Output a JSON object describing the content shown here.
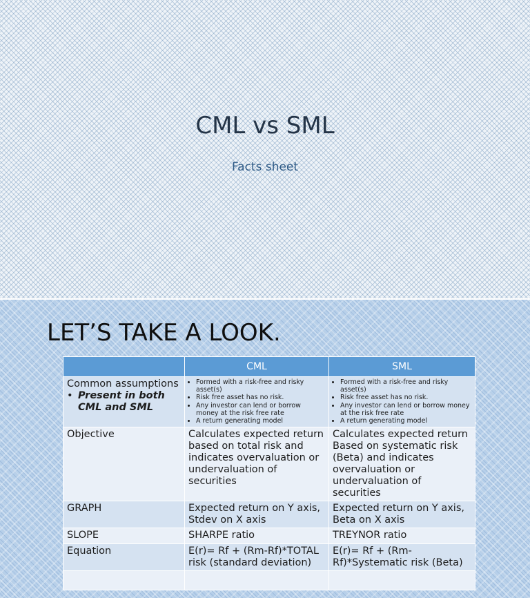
{
  "slide1": {
    "title": "CML vs SML",
    "subtitle": "Facts sheet"
  },
  "slide2": {
    "heading": "LET’S TAKE A LOOK.",
    "table": {
      "headers": [
        "",
        "CML",
        "SML"
      ],
      "assumptions": {
        "label": "Common assumptions",
        "bullet": "Present in both CML and SML",
        "cml": [
          "Formed with a risk-free and risky asset(s)",
          "Risk free asset has no risk.",
          "Any investor can lend or borrow money at the risk free rate",
          "A return generating model"
        ],
        "sml": [
          "Formed with a risk-free and risky asset(s)",
          "Risk free asset has no risk.",
          "Any investor can lend or borrow money at the risk free rate",
          "A return generating model"
        ]
      },
      "rows": [
        {
          "label": "Objective",
          "cml": "Calculates expected return based on total risk and indicates overvaluation or undervaluation of securities",
          "sml": "Calculates expected return Based on systematic risk (Beta) and indicates overvaluation or undervaluation of securities"
        },
        {
          "label": "GRAPH",
          "cml": "Expected return on Y axis, Stdev on X axis",
          "sml": "Expected return on Y axis, Beta on X axis"
        },
        {
          "label": "SLOPE",
          "cml": "SHARPE ratio",
          "sml": "TREYNOR ratio"
        },
        {
          "label": "Equation",
          "cml": "E(r)= Rf + (Rm-Rf)*TOTAL risk (standard deviation)",
          "sml": "E(r)= Rf + (Rm-Rf)*Systematic risk (Beta)"
        },
        {
          "label": "",
          "cml": "",
          "sml": ""
        }
      ]
    }
  }
}
